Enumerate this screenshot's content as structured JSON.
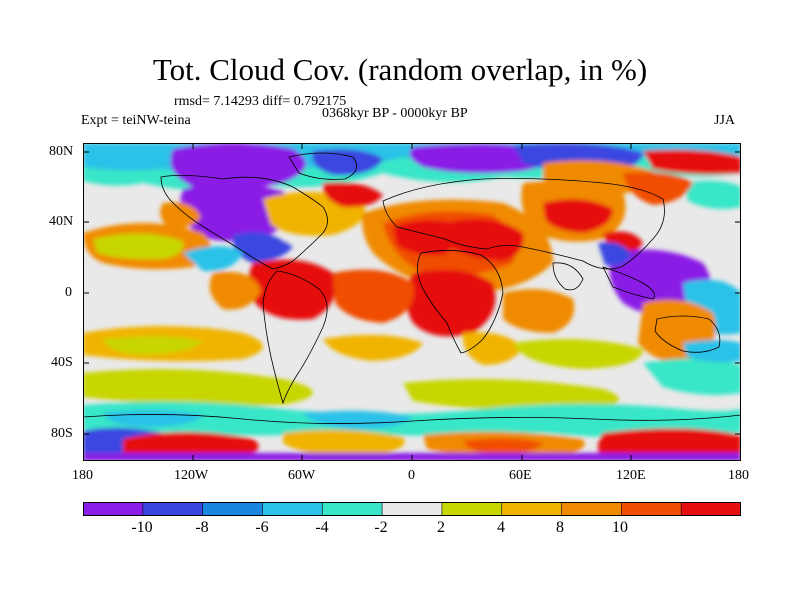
{
  "title": "Tot. Cloud Cov. (random overlap, in %)",
  "stats": "rmsd= 7.14293 diff= 0.792175",
  "period": "0368kyr BP - 0000kyr BP",
  "expt": "Expt = teiNW-teina",
  "season": "JJA",
  "lat_labels": [
    "80N",
    "40N",
    "0",
    "40S",
    "80S"
  ],
  "lon_labels": [
    "180",
    "120W",
    "60W",
    "0",
    "60E",
    "120E",
    "180"
  ],
  "colorbar": {
    "labels": [
      "-10",
      "-8",
      "-6",
      "-4",
      "-2",
      "2",
      "4",
      "8",
      "10"
    ],
    "colors": [
      "#8a1ee6",
      "#3a46e0",
      "#1a86e0",
      "#2ac2e8",
      "#38e6c8",
      "#e9e9e9",
      "#c8d600",
      "#f0b400",
      "#f08a00",
      "#f04e00",
      "#e61010"
    ]
  }
}
